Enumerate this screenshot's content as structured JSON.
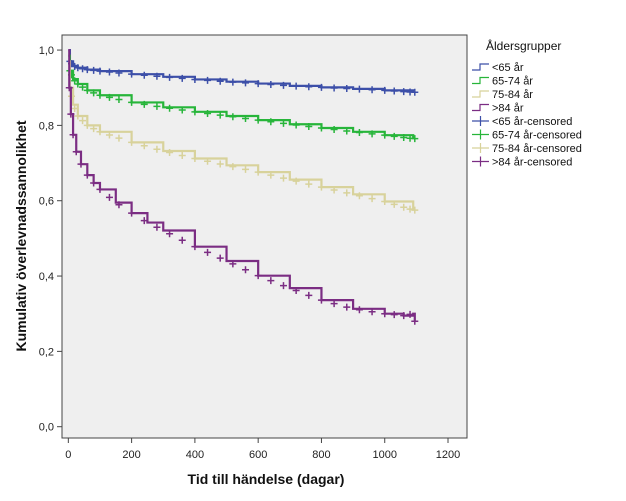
{
  "chart_data": {
    "type": "line",
    "xlabel": "Tid till händelse (dagar)",
    "ylabel": "Kumulativ överlevnadssannolikhet",
    "xlim": [
      -20,
      1260
    ],
    "ylim": [
      -0.03,
      1.04
    ],
    "x_ticks": [
      0,
      200,
      400,
      600,
      800,
      1000,
      1200
    ],
    "x_tick_labels": [
      "0",
      "200",
      "400",
      "600",
      "800",
      "1000",
      "1200"
    ],
    "y_ticks": [
      0.0,
      0.2,
      0.4,
      0.6,
      0.8,
      1.0
    ],
    "y_tick_labels": [
      "0,0",
      "0,2",
      "0,4",
      "0,6",
      "0,8",
      "1,0"
    ],
    "plot_background": "#efefef",
    "legend": {
      "title": "Åldersgrupper",
      "placement": "right"
    },
    "series": [
      {
        "name": "<65 år",
        "censored_name": "<65 år-censored",
        "color": "#3c4fa8",
        "x": [
          0,
          5,
          15,
          30,
          60,
          100,
          200,
          300,
          400,
          500,
          600,
          700,
          800,
          900,
          1000,
          1090
        ],
        "y": [
          1.0,
          0.97,
          0.958,
          0.953,
          0.948,
          0.944,
          0.936,
          0.929,
          0.922,
          0.916,
          0.911,
          0.905,
          0.901,
          0.897,
          0.893,
          0.888
        ],
        "censored_x": [
          5,
          10,
          20,
          30,
          45,
          60,
          80,
          100,
          130,
          160,
          200,
          240,
          280,
          320,
          360,
          400,
          440,
          480,
          520,
          560,
          600,
          640,
          680,
          720,
          760,
          800,
          840,
          880,
          920,
          960,
          1000,
          1030,
          1060,
          1080,
          1095
        ]
      },
      {
        "name": "65-74 år",
        "censored_name": "65-74 år-censored",
        "color": "#27b53a",
        "x": [
          0,
          5,
          15,
          30,
          60,
          100,
          200,
          300,
          400,
          500,
          600,
          700,
          800,
          900,
          1000,
          1090
        ],
        "y": [
          0.985,
          0.945,
          0.923,
          0.91,
          0.893,
          0.88,
          0.861,
          0.848,
          0.836,
          0.825,
          0.814,
          0.803,
          0.793,
          0.783,
          0.774,
          0.765
        ],
        "censored_x": [
          5,
          10,
          20,
          30,
          45,
          60,
          80,
          100,
          130,
          160,
          200,
          240,
          280,
          320,
          360,
          400,
          440,
          480,
          520,
          560,
          600,
          640,
          680,
          720,
          760,
          800,
          840,
          880,
          920,
          960,
          1000,
          1030,
          1060,
          1080,
          1095
        ]
      },
      {
        "name": "75-84 år",
        "censored_name": "75-84 år-censored",
        "color": "#d8d29b",
        "x": [
          0,
          5,
          15,
          30,
          60,
          100,
          200,
          300,
          400,
          500,
          600,
          700,
          800,
          900,
          1000,
          1090
        ],
        "y": [
          0.97,
          0.9,
          0.855,
          0.825,
          0.8,
          0.783,
          0.755,
          0.732,
          0.712,
          0.694,
          0.676,
          0.656,
          0.636,
          0.617,
          0.598,
          0.575
        ],
        "censored_x": [
          5,
          10,
          20,
          30,
          45,
          60,
          80,
          100,
          130,
          160,
          200,
          240,
          280,
          320,
          360,
          400,
          440,
          480,
          520,
          560,
          600,
          640,
          680,
          720,
          760,
          800,
          840,
          880,
          920,
          960,
          1000,
          1030,
          1060,
          1080,
          1095
        ]
      },
      {
        "name": ">84 år",
        "censored_name": ">84 år-censored",
        "color": "#7b2d83",
        "x": [
          0,
          3,
          8,
          15,
          25,
          40,
          60,
          80,
          100,
          150,
          200,
          250,
          300,
          400,
          500,
          600,
          700,
          800,
          900,
          1000,
          1060,
          1090,
          1095
        ],
        "y": [
          1.0,
          0.9,
          0.83,
          0.775,
          0.73,
          0.697,
          0.668,
          0.647,
          0.63,
          0.595,
          0.567,
          0.542,
          0.521,
          0.478,
          0.44,
          0.401,
          0.368,
          0.336,
          0.313,
          0.3,
          0.295,
          0.3,
          0.28
        ],
        "censored_x": [
          3,
          8,
          15,
          25,
          40,
          60,
          80,
          100,
          130,
          160,
          200,
          240,
          280,
          320,
          360,
          400,
          440,
          480,
          520,
          560,
          600,
          640,
          680,
          720,
          760,
          800,
          840,
          880,
          920,
          960,
          1000,
          1030,
          1060,
          1080,
          1095
        ]
      }
    ]
  }
}
